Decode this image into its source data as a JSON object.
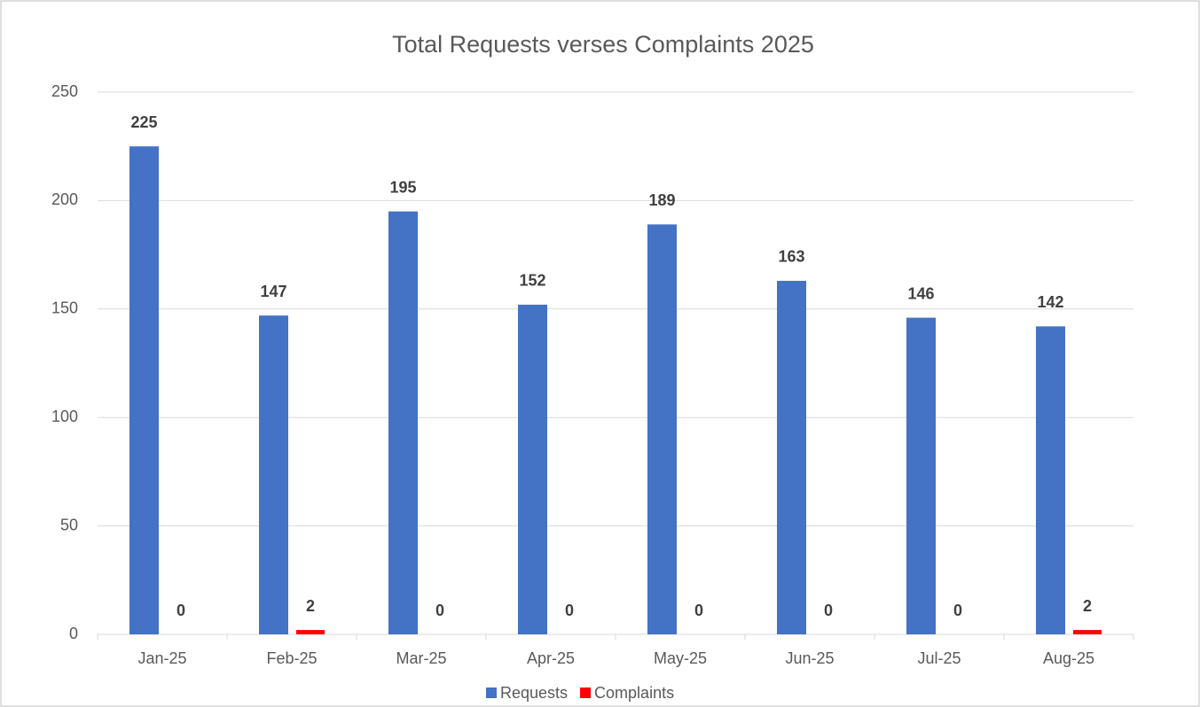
{
  "chart_data": {
    "type": "bar",
    "title": "Total Requests verses Complaints 2025",
    "categories": [
      "Jan-25",
      "Feb-25",
      "Mar-25",
      "Apr-25",
      "May-25",
      "Jun-25",
      "Jul-25",
      "Aug-25"
    ],
    "series": [
      {
        "name": "Requests",
        "color": "#4472c4",
        "values": [
          225,
          147,
          195,
          152,
          189,
          163,
          146,
          142
        ]
      },
      {
        "name": "Complaints",
        "color": "#ff0000",
        "values": [
          0,
          2,
          0,
          0,
          0,
          0,
          0,
          2
        ]
      }
    ],
    "ylim": [
      0,
      250
    ],
    "yticks": [
      0,
      50,
      100,
      150,
      200,
      250
    ],
    "grid": true,
    "legend": "bottom"
  }
}
